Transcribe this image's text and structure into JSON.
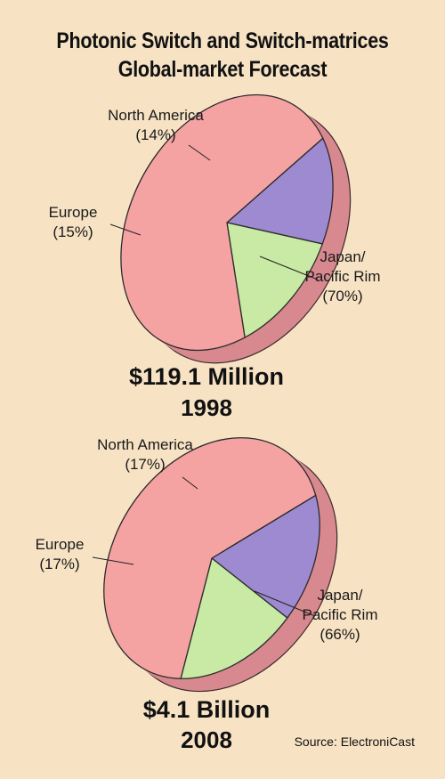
{
  "title_lines": [
    "Photonic Switch and Switch-matrices",
    "Global-market Forecast"
  ],
  "source": "Source: ElectroniCast",
  "colors": {
    "background": "#f7e3c4",
    "japan_pacific_rim": "#f4a2a2",
    "north_america": "#9d8ad0",
    "europe": "#c8eaa4",
    "pie_side": "#d7898f"
  },
  "chart_data": [
    {
      "type": "pie",
      "amount": "$119.1 Million",
      "year": "1998",
      "slices": [
        {
          "label_lines": [
            "North America",
            "(14%)"
          ],
          "value": 14
        },
        {
          "label_lines": [
            "Europe",
            "(15%)"
          ],
          "value": 15
        },
        {
          "label_lines": [
            "Japan/",
            "Pacific Rim",
            "(70%)"
          ],
          "value": 70
        }
      ]
    },
    {
      "type": "pie",
      "amount": "$4.1 Billion",
      "year": "2008",
      "slices": [
        {
          "label_lines": [
            "North America",
            "(17%)"
          ],
          "value": 17
        },
        {
          "label_lines": [
            "Europe",
            "(17%)"
          ],
          "value": 17
        },
        {
          "label_lines": [
            "Japan/",
            "Pacific Rim",
            "(66%)"
          ],
          "value": 66
        }
      ]
    }
  ]
}
